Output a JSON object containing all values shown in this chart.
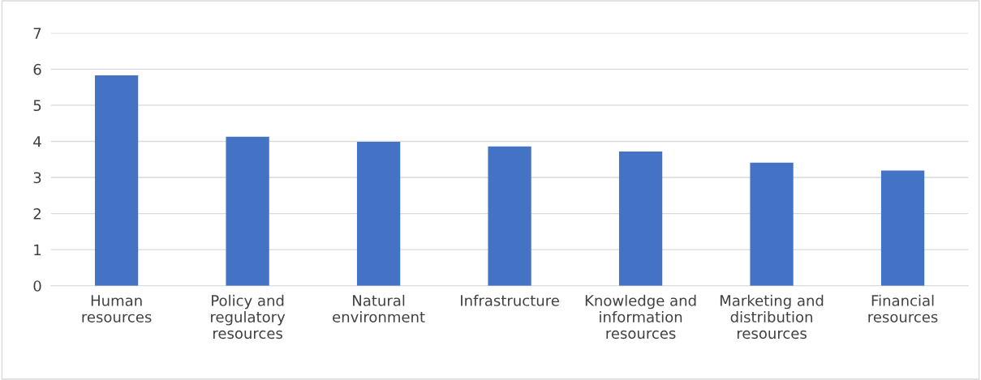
{
  "chart_data": {
    "type": "bar",
    "categories": [
      "Human\nresources",
      "Policy and\nregulatory\nresources",
      "Natural\nenvironment",
      "Infrastructure",
      "Knowledge and\ninformation\nresources",
      "Marketing and\ndistribution\nresources",
      "Financial\nresources"
    ],
    "values": [
      5.83,
      4.13,
      3.99,
      3.86,
      3.72,
      3.41,
      3.19
    ],
    "color": "#4472c4",
    "ylim": [
      0,
      7
    ],
    "yticks": [
      0,
      1,
      2,
      3,
      4,
      5,
      6,
      7
    ],
    "grid": "y"
  }
}
